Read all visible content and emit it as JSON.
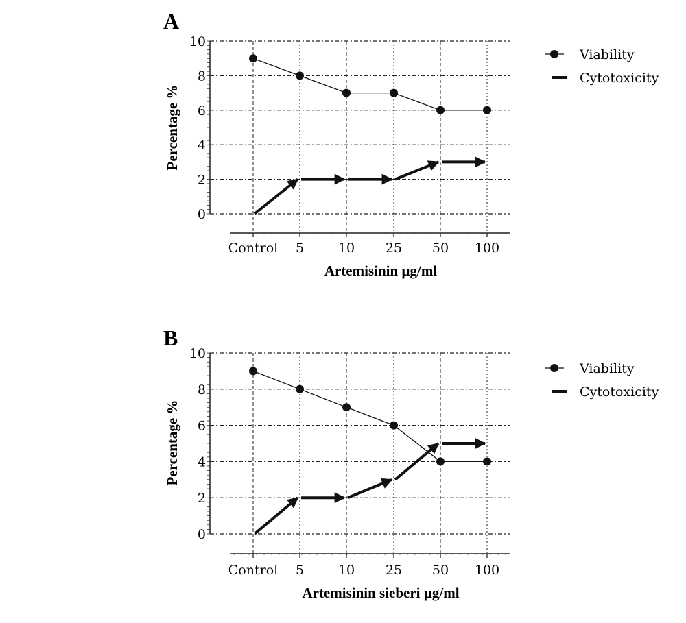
{
  "chart_data": [
    {
      "panel_label": "A",
      "type": "line",
      "categories": [
        "Control",
        "5",
        "10",
        "25",
        "50",
        "100"
      ],
      "xlabel": "Artemisinin µg/ml",
      "ylabel": "Percentage %",
      "ylim": [
        0,
        10
      ],
      "yticks": [
        "0",
        "2",
        "4",
        "6",
        "8",
        "10"
      ],
      "grid": true,
      "legend_position": "right",
      "series": [
        {
          "name": "Viability",
          "marker": "circle",
          "values": [
            9,
            8,
            7,
            7,
            6,
            6
          ]
        },
        {
          "name": "Cytotoxicity",
          "marker": "arrow",
          "values": [
            0,
            2,
            2,
            2,
            3,
            3
          ]
        }
      ]
    },
    {
      "panel_label": "B",
      "type": "line",
      "categories": [
        "Control",
        "5",
        "10",
        "25",
        "50",
        "100"
      ],
      "xlabel": "Artemisinin sieberi µg/ml",
      "ylabel": "Percentage %",
      "ylim": [
        0,
        10
      ],
      "yticks": [
        "0",
        "2",
        "4",
        "6",
        "8",
        "10"
      ],
      "grid": true,
      "legend_position": "right",
      "series": [
        {
          "name": "Viability",
          "marker": "circle",
          "values": [
            9,
            8,
            7,
            6,
            4,
            4
          ]
        },
        {
          "name": "Cytotoxicity",
          "marker": "arrow",
          "values": [
            0,
            2,
            2,
            3,
            5,
            5
          ]
        }
      ]
    }
  ]
}
